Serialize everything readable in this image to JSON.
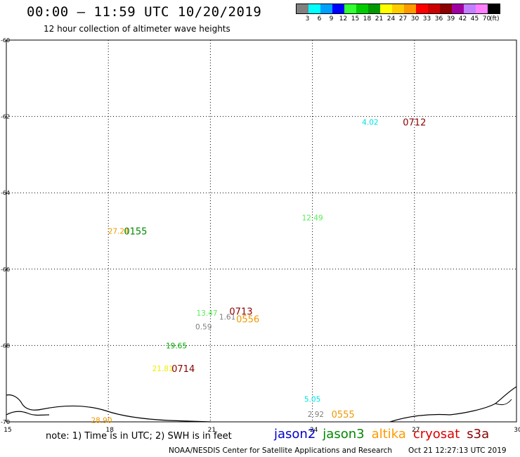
{
  "header": {
    "title": "00:00 – 11:59 UTC 10/20/2019",
    "subtitle": "12 hour collection of altimeter wave heights"
  },
  "scale": {
    "colors": [
      "#808080",
      "#00ffff",
      "#00a0ff",
      "#0000ff",
      "#33ff33",
      "#00cc00",
      "#009900",
      "#ffff00",
      "#ffcc00",
      "#ff9900",
      "#ff0000",
      "#cc0000",
      "#8b0000",
      "#a000a0",
      "#c080ff",
      "#ff80ff",
      "#000000"
    ],
    "labels": [
      "3",
      "6",
      "9",
      "12",
      "15",
      "18",
      "21",
      "24",
      "27",
      "30",
      "33",
      "36",
      "39",
      "42",
      "45",
      "70"
    ],
    "unit": "(ft)"
  },
  "chart_data": {
    "type": "scatter",
    "title": "00:00 – 11:59 UTC 10/20/2019",
    "subtitle": "12 hour collection of altimeter wave heights",
    "xlim": [
      15,
      30
    ],
    "ylim": [
      -70,
      -60
    ],
    "grid": true,
    "x_ticks": [
      "15",
      "18",
      "21",
      "24",
      "27",
      "30"
    ],
    "y_ticks": [
      "-60",
      "-62",
      "-64",
      "-66",
      "-68",
      "-70"
    ],
    "wave_heights": [
      {
        "text": "4.02",
        "x": 25.7,
        "y": -62.15,
        "color": "#00e0e0"
      },
      {
        "text": "12.49",
        "x": 24.0,
        "y": -64.65,
        "color": "#55ee55"
      },
      {
        "text": "27.24",
        "x": 18.3,
        "y": -65.0,
        "color": "#ee9900"
      },
      {
        "text": "13.47",
        "x": 20.9,
        "y": -67.15,
        "color": "#55ee55"
      },
      {
        "text": "1.61",
        "x": 21.5,
        "y": -67.25,
        "color": "#808080"
      },
      {
        "text": "0.59",
        "x": 20.8,
        "y": -67.5,
        "color": "#808080"
      },
      {
        "text": "19.65",
        "x": 20.0,
        "y": -68.0,
        "color": "#00aa00"
      },
      {
        "text": "21.81",
        "x": 19.6,
        "y": -68.6,
        "color": "#eeee00"
      },
      {
        "text": "5.05",
        "x": 24.0,
        "y": -69.4,
        "color": "#00e0e0"
      },
      {
        "text": "2.92",
        "x": 24.1,
        "y": -69.8,
        "color": "#808080"
      },
      {
        "text": "28.90",
        "x": 17.8,
        "y": -69.95,
        "color": "#ee9900"
      }
    ],
    "pass_times": [
      {
        "text": "0712",
        "x": 27.0,
        "y": -62.15,
        "color": "#8b0000"
      },
      {
        "text": "0155",
        "x": 18.8,
        "y": -65.0,
        "color": "#008800"
      },
      {
        "text": "0713",
        "x": 21.9,
        "y": -67.1,
        "color": "#8b0000"
      },
      {
        "text": "0556",
        "x": 22.1,
        "y": -67.3,
        "color": "#ee9900"
      },
      {
        "text": "0714",
        "x": 20.2,
        "y": -68.6,
        "color": "#8b0000"
      },
      {
        "text": "0555",
        "x": 24.9,
        "y": -69.8,
        "color": "#ee9900"
      }
    ]
  },
  "footer": {
    "note": "note: 1) Time is in UTC; 2) SWH is in feet",
    "satellites": [
      {
        "name": "jason2",
        "color": "#0000cc"
      },
      {
        "name": "jason3",
        "color": "#008800"
      },
      {
        "name": "altika",
        "color": "#ff9900"
      },
      {
        "name": "cryosat",
        "color": "#dd0000"
      },
      {
        "name": "s3a",
        "color": "#8b0000"
      }
    ],
    "credit": "NOAA/NESDIS Center for Satellite Applications and Research",
    "timestamp": "Oct 21 12:27:13 UTC 2019"
  }
}
